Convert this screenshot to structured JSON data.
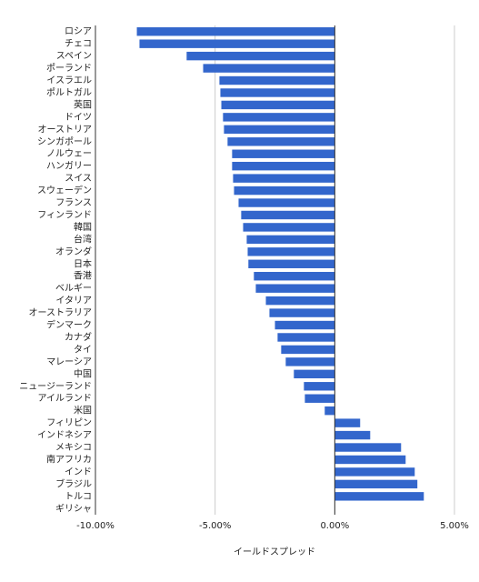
{
  "chart_data": {
    "type": "hbar",
    "x_label": "イールドスプレッド",
    "categories": [
      "ロシア",
      "チェコ",
      "スペイン",
      "ポーランド",
      "イスラエル",
      "ポルトガル",
      "英国",
      "ドイツ",
      "オーストリア",
      "シンガポール",
      "ノルウェー",
      "ハンガリー",
      "スイス",
      "スウェーデン",
      "フランス",
      "フィンランド",
      "韓国",
      "台湾",
      "オランダ",
      "日本",
      "香港",
      "ベルギー",
      "イタリア",
      "オーストラリア",
      "デンマーク",
      "カナダ",
      "タイ",
      "マレーシア",
      "中国",
      "ニュージーランド",
      "アイルランド",
      "米国",
      "フィリピン",
      "インドネシア",
      "メキシコ",
      "南アフリカ",
      "インド",
      "ブラジル",
      "トルコ",
      "ギリシャ"
    ],
    "values": [
      -8.27,
      -8.16,
      -6.19,
      -5.5,
      -4.82,
      -4.78,
      -4.74,
      -4.67,
      -4.63,
      -4.48,
      -4.29,
      -4.29,
      -4.25,
      -4.21,
      -4.02,
      -3.91,
      -3.83,
      -3.68,
      -3.64,
      -3.61,
      -3.38,
      -3.3,
      -2.88,
      -2.73,
      -2.5,
      -2.39,
      -2.24,
      -2.05,
      -1.71,
      -1.29,
      -1.25,
      -0.42,
      1.06,
      1.48,
      2.77,
      2.96,
      3.34,
      3.45,
      3.72,
      null
    ],
    "color": "#3366cc",
    "xlim": [
      -10,
      5
    ],
    "xticks": [
      {
        "value": -10,
        "label": "-10.00%"
      },
      {
        "value": -5,
        "label": "-5.00%"
      },
      {
        "value": 0,
        "label": "0.00%"
      },
      {
        "value": 5,
        "label": "5.00%"
      }
    ],
    "grid": true
  }
}
